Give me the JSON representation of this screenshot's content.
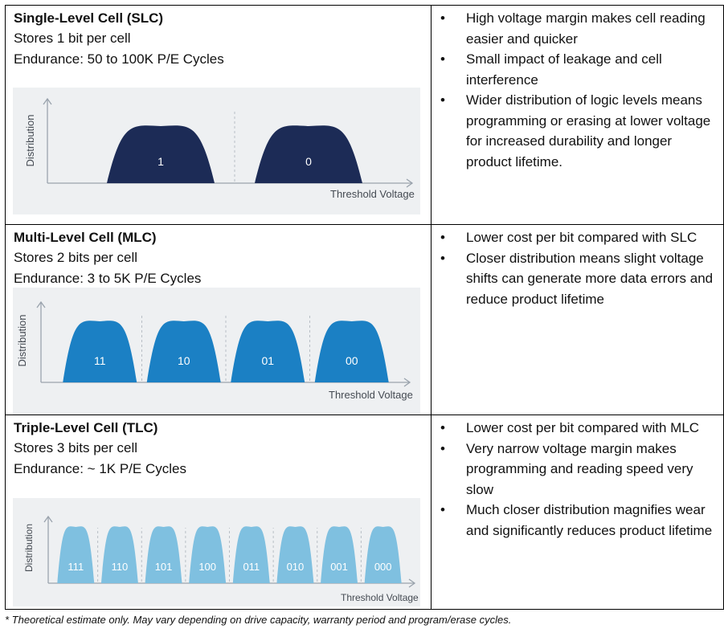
{
  "rows": [
    {
      "title": "Single-Level Cell (SLC)",
      "line1": "Stores 1 bit per cell",
      "line2": "Endurance: 50 to 100K P/E Cycles",
      "chart": {
        "ylabel": "Distribution",
        "xlabel": "Threshold Voltage",
        "color": "#1c2b56",
        "states": [
          "1",
          "0"
        ]
      },
      "bullets": [
        "High voltage margin makes cell reading easier and quicker",
        "Small impact of leakage and cell interference",
        "Wider distribution of logic levels means programming or erasing at lower voltage for increased durability and longer product lifetime."
      ]
    },
    {
      "title": "Multi-Level Cell (MLC)",
      "line1": "Stores 2 bits per cell",
      "line2": "Endurance: 3 to 5K P/E Cycles",
      "chart": {
        "ylabel": "Distribution",
        "xlabel": "Threshold Voltage",
        "color": "#1b80c4",
        "states": [
          "11",
          "10",
          "01",
          "00"
        ]
      },
      "bullets": [
        "Lower cost per bit compared with SLC",
        "Closer distribution means slight voltage shifts can generate more data errors and reduce product lifetime"
      ]
    },
    {
      "title": "Triple-Level Cell (TLC)",
      "line1": "Stores 3 bits per cell",
      "line2": "Endurance: ~ 1K P/E Cycles",
      "chart": {
        "ylabel": "Distribution",
        "xlabel": "Threshold Voltage",
        "color": "#7fc0e0",
        "states": [
          "111",
          "110",
          "101",
          "100",
          "011",
          "010",
          "001",
          "000"
        ]
      },
      "bullets": [
        "Lower cost per bit compared with MLC",
        "Very narrow voltage margin makes programming and reading speed very slow",
        "Much closer distribution magnifies wear and significantly reduces product lifetime"
      ]
    }
  ],
  "footnote": "* Theoretical estimate only. May vary depending on drive capacity, warranty period and program/erase cycles."
}
